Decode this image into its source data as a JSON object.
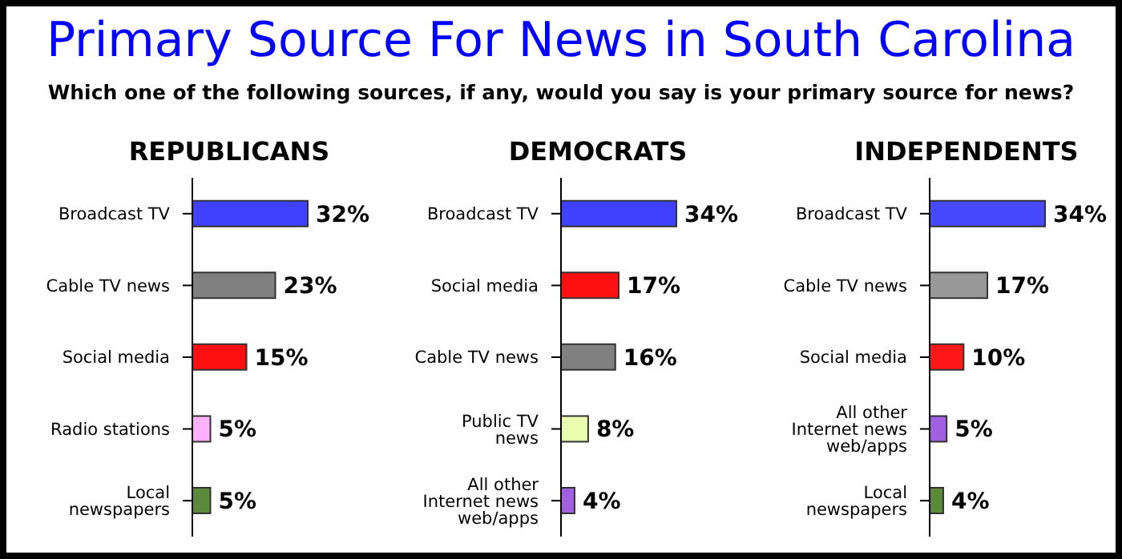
{
  "chart_data": [
    {
      "type": "other",
      "title": "Primary Source For News in South Carolina",
      "subtitle": "Which one of the following sources, if any, would you say is your primary source for news?"
    },
    {
      "type": "bar",
      "orientation": "horizontal",
      "title": "REPUBLICANS",
      "categories": [
        "Broadcast TV",
        "Cable TV news",
        "Social media",
        "Radio stations",
        "Local newspapers"
      ],
      "values": [
        32,
        23,
        15,
        5,
        5
      ],
      "value_labels": [
        "32%",
        "23%",
        "15%",
        "5%",
        "5%"
      ],
      "colors": [
        "#4040ff",
        "#808080",
        "#ff1010",
        "#ffb0ff",
        "#5a8a3a"
      ]
    },
    {
      "type": "bar",
      "orientation": "horizontal",
      "title": "DEMOCRATS",
      "categories": [
        "Broadcast TV",
        "Social media",
        "Cable TV news",
        "Public TV news",
        "All other Internet news web/apps"
      ],
      "values": [
        34,
        17,
        16,
        8,
        4
      ],
      "value_labels": [
        "34%",
        "17%",
        "16%",
        "8%",
        "4%"
      ],
      "colors": [
        "#4040ff",
        "#ff1010",
        "#808080",
        "#e8ffb0",
        "#a060e0"
      ]
    },
    {
      "type": "bar",
      "orientation": "horizontal",
      "title": "INDEPENDENTS",
      "categories": [
        "Broadcast TV",
        "Cable TV news",
        "Social media",
        "All other Internet news web/apps",
        "Local newspapers"
      ],
      "values": [
        34,
        17,
        10,
        5,
        4
      ],
      "value_labels": [
        "34%",
        "17%",
        "10%",
        "5%",
        "4%"
      ],
      "colors": [
        "#4848ff",
        "#999999",
        "#ff1818",
        "#a060e0",
        "#5a8a3a"
      ]
    }
  ]
}
